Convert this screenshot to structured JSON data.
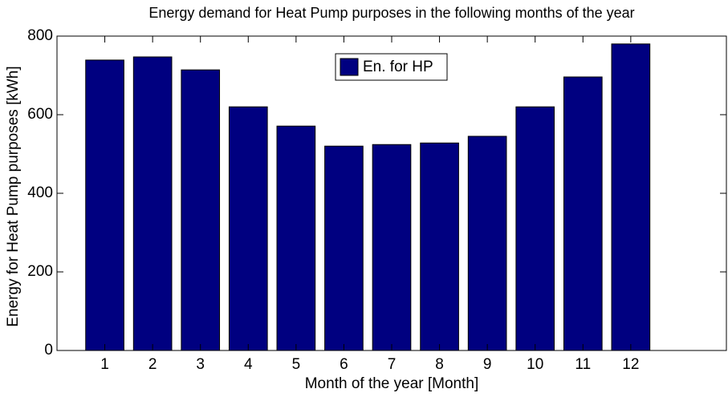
{
  "chart_data": {
    "type": "bar",
    "title": "Energy demand for Heat Pump purposes in the following months of the year",
    "xlabel": "Month of the year [Month]",
    "ylabel": "Energy for Heat Pump purposes [kWh]",
    "x": [
      1,
      2,
      3,
      4,
      5,
      6,
      7,
      8,
      9,
      10,
      11,
      12
    ],
    "series": [
      {
        "name": "En. for HP",
        "color": "#000080",
        "values": [
          739,
          747,
          714,
          620,
          571,
          520,
          524,
          528,
          545,
          620,
          696,
          780
        ]
      }
    ],
    "xlim": [
      0,
      14
    ],
    "xticks": [
      1,
      2,
      3,
      4,
      5,
      6,
      7,
      8,
      9,
      10,
      11,
      12
    ],
    "ylim": [
      0,
      800
    ],
    "yticks": [
      0,
      200,
      400,
      600,
      800
    ],
    "grid": false,
    "legend": "top"
  }
}
